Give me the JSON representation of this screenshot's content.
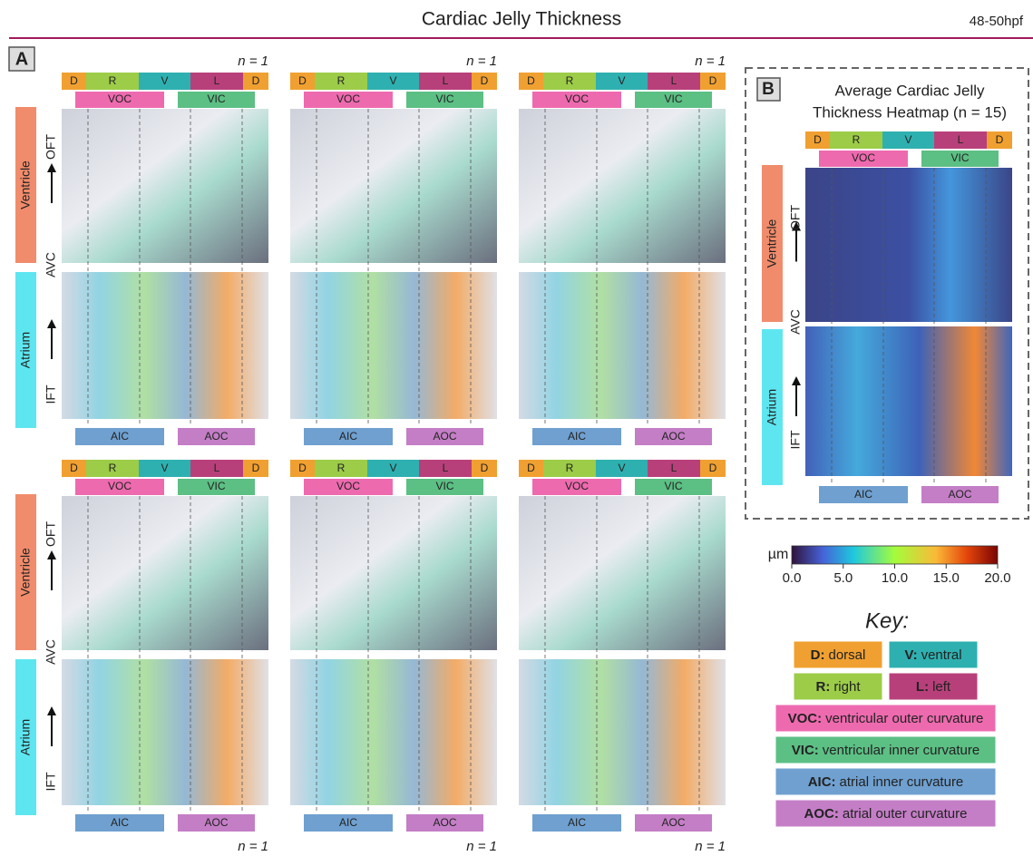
{
  "header": {
    "title": "Cardiac Jelly Thickness",
    "stage": "48-50hpf"
  },
  "orientation": {
    "top": [
      "D",
      "R",
      "V",
      "L",
      "D"
    ],
    "curvature_top": [
      "VOC",
      "VIC"
    ],
    "curvature_bottom": [
      "AIC",
      "AOC"
    ],
    "chambers": [
      "Ventricle",
      "Atrium"
    ],
    "regions": [
      "OFT",
      "AVC",
      "IFT"
    ]
  },
  "panel_a": {
    "label": "A",
    "samples": [
      {
        "n": "n = 1"
      },
      {
        "n": "n = 1"
      },
      {
        "n": "n = 1"
      },
      {
        "n": "n = 1"
      },
      {
        "n": "n = 1"
      },
      {
        "n": "n = 1"
      }
    ]
  },
  "panel_b": {
    "label": "B",
    "title": [
      "Average Cardiac Jelly",
      "Thickness Heatmap (n = 15)"
    ]
  },
  "colorbar": {
    "unit": "µm",
    "ticks": [
      "0.0",
      "5.0",
      "10.0",
      "15.0",
      "20.0"
    ]
  },
  "key": {
    "title": "Key:",
    "items": [
      {
        "abbr": "D:",
        "desc": "dorsal"
      },
      {
        "abbr": "V:",
        "desc": "ventral"
      },
      {
        "abbr": "R:",
        "desc": "right"
      },
      {
        "abbr": "L:",
        "desc": "left"
      },
      {
        "abbr": "VOC:",
        "desc": "ventricular outer curvature"
      },
      {
        "abbr": "VIC:",
        "desc": "ventricular inner curvature"
      },
      {
        "abbr": "AIC:",
        "desc": "atrial inner curvature"
      },
      {
        "abbr": "AOC:",
        "desc": "atrial outer curvature"
      }
    ]
  }
}
